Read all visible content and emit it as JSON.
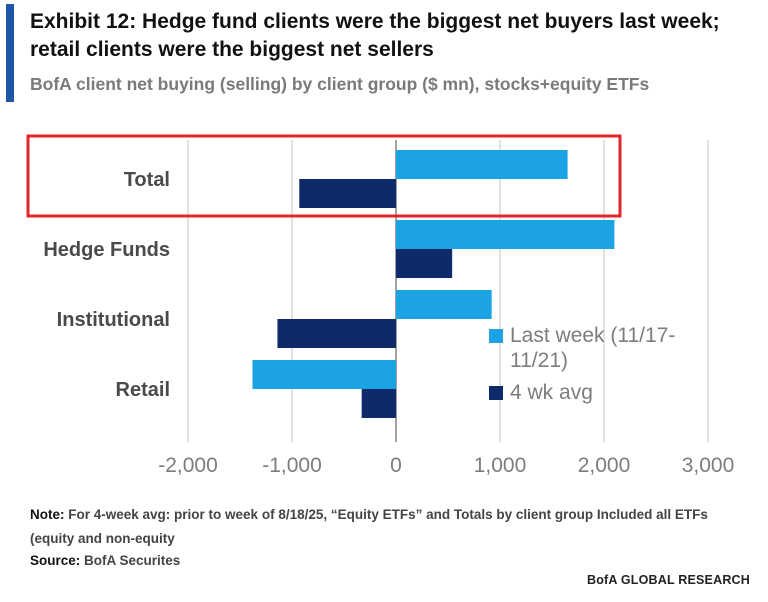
{
  "header": {
    "title": "Exhibit 12: Hedge fund clients were the biggest net buyers last week; retail clients were the biggest net sellers",
    "subtitle": "BofA client net buying (selling) by client group ($ mn), stocks+equity ETFs"
  },
  "chart_data": {
    "type": "bar",
    "orientation": "horizontal",
    "categories": [
      "Total",
      "Hedge Funds",
      "Institutional",
      "Retail"
    ],
    "series": [
      {
        "name": "Last week (11/17-11/21)",
        "color": "#1ca3e4",
        "values": [
          1650,
          2100,
          920,
          -1380
        ]
      },
      {
        "name": "4 wk avg",
        "color": "#0f2a6b",
        "values": [
          -930,
          540,
          -1140,
          -330
        ]
      }
    ],
    "xlim": [
      -2000,
      3000
    ],
    "xticks": [
      -2000,
      -1000,
      0,
      1000,
      2000,
      3000
    ],
    "xtick_labels": [
      "-2,000",
      "-1,000",
      "0",
      "1,000",
      "2,000",
      "3,000"
    ],
    "grid": "vertical",
    "legend_position": "right",
    "highlight": {
      "category": "Total",
      "color": "#e0262b"
    }
  },
  "legend": {
    "last_week_line1": "Last week (11/17-",
    "last_week_line2": "11/21)",
    "avg": "4 wk avg"
  },
  "footer": {
    "note_label": "Note:",
    "note_text": "For 4-week avg: prior to week of 8/18/25, “Equity ETFs” and Totals by client group Included all ETFs (equity and non-equity",
    "source_label": "Source:",
    "source_text": "BofA Securites",
    "brand": "BofA GLOBAL RESEARCH"
  }
}
